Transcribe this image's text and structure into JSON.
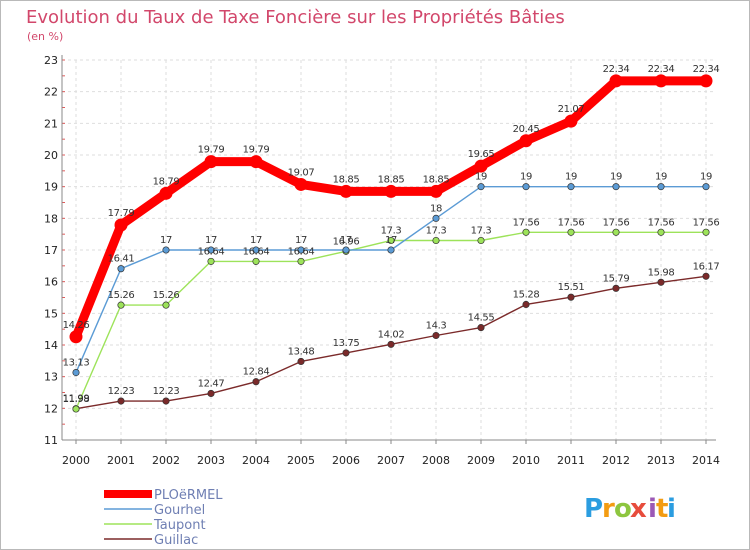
{
  "chart_data": {
    "type": "line",
    "title": "Evolution du Taux de Taxe Foncière sur les Propriétés Bâties",
    "subtitle": "(en %)",
    "x": [
      "2000",
      "2001",
      "2002",
      "2003",
      "2004",
      "2005",
      "2006",
      "2007",
      "2008",
      "2009",
      "2010",
      "2011",
      "2012",
      "2013",
      "2014"
    ],
    "ylim": [
      11,
      23
    ],
    "yticks": [
      11,
      12,
      13,
      14,
      15,
      16,
      17,
      18,
      19,
      20,
      21,
      22,
      23
    ],
    "grid": true,
    "legend_position": "bottom-left",
    "series": [
      {
        "name": "PLOëRMEL",
        "color": "#ff0000",
        "values": [
          14.26,
          17.79,
          18.79,
          19.79,
          19.79,
          19.07,
          18.85,
          18.85,
          18.85,
          19.65,
          20.45,
          21.07,
          22.34,
          22.34,
          22.34
        ],
        "labels": [
          "14.26",
          "17.79",
          "18.79",
          "19.79",
          "19.79",
          "19.07",
          "18.85",
          "18.85",
          "18.85",
          "19.65",
          "20.45",
          "21.07",
          "22.34",
          "22.34",
          "22.34"
        ]
      },
      {
        "name": "Gourhel",
        "color": "#5b9bd5",
        "values": [
          13.13,
          16.41,
          17,
          17,
          17,
          17,
          17,
          17,
          18,
          19,
          19,
          19,
          19,
          19,
          19
        ],
        "labels": [
          "13.13",
          "16.41",
          "17",
          "17",
          "17",
          "17",
          "17",
          "17",
          "18",
          "19",
          "19",
          "19",
          "19",
          "19",
          "19"
        ]
      },
      {
        "name": "Taupont",
        "color": "#9de35a",
        "values": [
          11.98,
          15.26,
          15.26,
          16.64,
          16.64,
          16.64,
          16.96,
          17.3,
          17.3,
          17.3,
          17.56,
          17.56,
          17.56,
          17.56,
          17.56
        ],
        "labels": [
          "11.98",
          "15.26",
          "15.26",
          "16.64",
          "16.64",
          "16.64",
          "16.96",
          "17.3",
          "17.3",
          "17.3",
          "17.56",
          "17.56",
          "17.56",
          "17.56",
          "17.56"
        ]
      },
      {
        "name": "Guillac",
        "color": "#7b2a2a",
        "values": [
          11.99,
          12.23,
          12.23,
          12.47,
          12.84,
          13.48,
          13.75,
          14.02,
          14.3,
          14.55,
          15.28,
          15.51,
          15.79,
          15.98,
          16.17
        ],
        "labels": [
          "11.99",
          "12.23",
          "12.23",
          "12.47",
          "12.84",
          "13.48",
          "13.75",
          "14.02",
          "14.3",
          "14.55",
          "15.28",
          "15.51",
          "15.79",
          "15.98",
          "16.17"
        ]
      }
    ]
  },
  "logo": {
    "text": "Proxiti",
    "letters": [
      "P",
      "r",
      "o",
      "x",
      "i",
      "t",
      "i"
    ],
    "colors": [
      "#2b9de0",
      "#f39c12",
      "#8dc63f",
      "#e74c3c",
      "#9b59b6",
      "#f39c12",
      "#2b9de0"
    ]
  }
}
